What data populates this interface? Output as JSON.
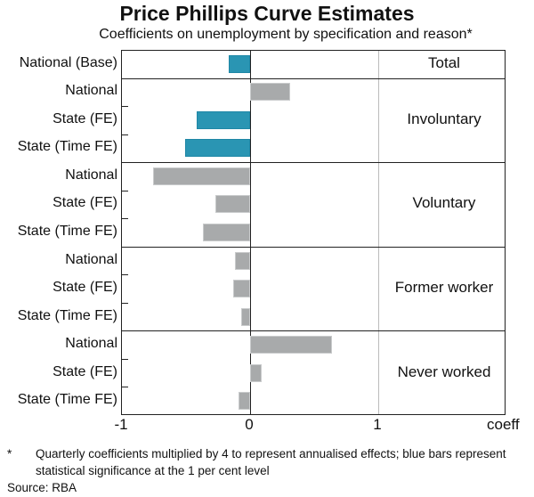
{
  "chart_data": {
    "type": "bar",
    "orientation": "horizontal",
    "title": "Price Phillips Curve Estimates",
    "subtitle": "Coefficients on unemployment by specification and reason*",
    "xlabel": "coeff",
    "xlim": [
      -1,
      2
    ],
    "xticks": [
      "-1",
      "0",
      "1"
    ],
    "colors": {
      "significant": "#2a95b3",
      "not_significant": "#a8aaab"
    },
    "groups": [
      {
        "name": "Total",
        "rows": [
          {
            "label": "National (Base)",
            "value": -0.17,
            "significant": true
          }
        ]
      },
      {
        "name": "Involuntary",
        "rows": [
          {
            "label": "National",
            "value": 0.31,
            "significant": false
          },
          {
            "label": "State (FE)",
            "value": -0.42,
            "significant": true
          },
          {
            "label": "State (Time FE)",
            "value": -0.51,
            "significant": true
          }
        ]
      },
      {
        "name": "Voluntary",
        "rows": [
          {
            "label": "National",
            "value": -0.76,
            "significant": false
          },
          {
            "label": "State (FE)",
            "value": -0.27,
            "significant": false
          },
          {
            "label": "State (Time FE)",
            "value": -0.37,
            "significant": false
          }
        ]
      },
      {
        "name": "Former worker",
        "rows": [
          {
            "label": "National",
            "value": -0.12,
            "significant": false
          },
          {
            "label": "State (FE)",
            "value": -0.13,
            "significant": false
          },
          {
            "label": "State (Time FE)",
            "value": -0.07,
            "significant": false
          }
        ]
      },
      {
        "name": "Never worked",
        "rows": [
          {
            "label": "National",
            "value": 0.64,
            "significant": false
          },
          {
            "label": "State (FE)",
            "value": 0.09,
            "significant": false
          },
          {
            "label": "State (Time FE)",
            "value": -0.09,
            "significant": false
          }
        ]
      }
    ]
  },
  "footnote": {
    "mark": "*",
    "text": "Quarterly coefficients multiplied by 4 to represent annualised effects; blue bars represent statistical significance at the 1 per cent level"
  },
  "source": "Source:  RBA"
}
